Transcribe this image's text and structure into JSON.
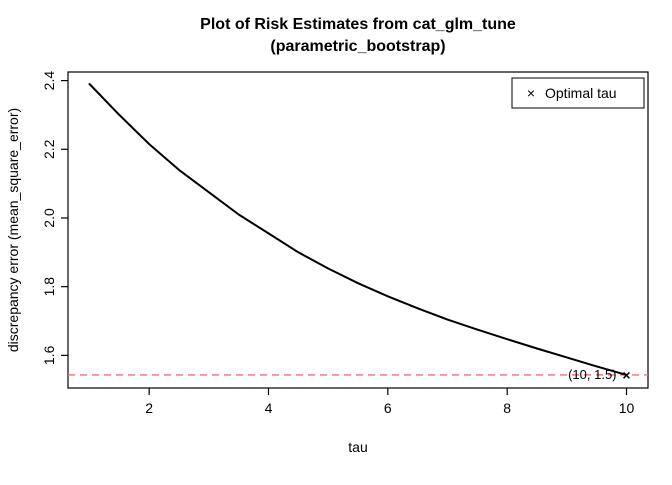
{
  "chart_data": {
    "type": "line",
    "title": "Plot of Risk Estimates from cat_glm_tune",
    "subtitle": "(parametric_bootstrap)",
    "xlabel": "tau",
    "ylabel": "discrepancy error (mean_square_error)",
    "xlim": [
      0.64,
      10.36
    ],
    "ylim": [
      1.505,
      2.425
    ],
    "x_ticks": [
      2,
      4,
      6,
      8,
      10
    ],
    "y_ticks": [
      "1.6",
      "1.8",
      "2.0",
      "2.2",
      "2.4"
    ],
    "grid": false,
    "series": [
      {
        "name": "risk estimate curve",
        "color": "#000000",
        "x": [
          1,
          1.5,
          2,
          2.5,
          3,
          3.5,
          4,
          4.5,
          5,
          5.5,
          6,
          6.5,
          7,
          7.5,
          8,
          8.5,
          9,
          9.5,
          10
        ],
        "y": [
          2.39,
          2.3,
          2.215,
          2.14,
          2.075,
          2.01,
          1.955,
          1.9,
          1.853,
          1.81,
          1.772,
          1.737,
          1.704,
          1.675,
          1.647,
          1.62,
          1.594,
          1.568,
          1.543
        ]
      }
    ],
    "hline": {
      "y": 1.543,
      "style": "dashed",
      "color": "#ff6666"
    },
    "optimal_point": {
      "x": 10,
      "y": 1.543,
      "label": "(10, 1.5)",
      "marker": "×",
      "color": "#e63333"
    },
    "legend": {
      "position": "top-right",
      "entries": [
        {
          "marker": "×",
          "label": "Optimal tau",
          "color": "#e63333"
        }
      ]
    }
  }
}
